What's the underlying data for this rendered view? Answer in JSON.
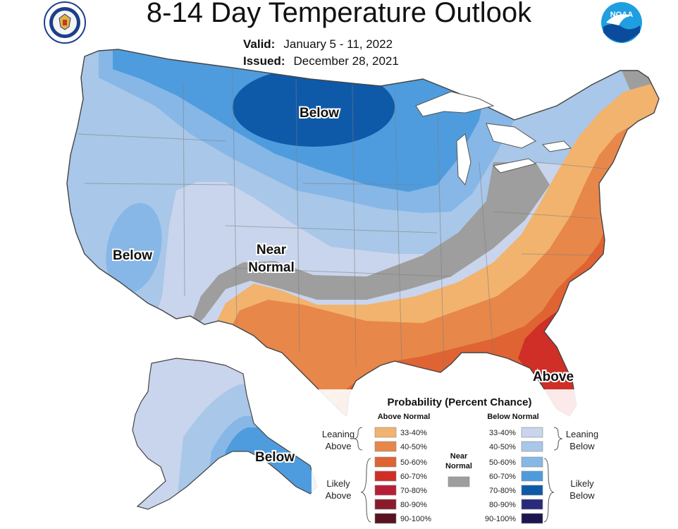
{
  "header": {
    "title": "8-14 Day Temperature Outlook",
    "valid_label": "Valid:",
    "valid_value": "January 5 - 11, 2022",
    "issued_label": "Issued:",
    "issued_value": "December 28, 2021",
    "left_logo_icon": "doc-seal-icon",
    "right_logo_icon": "noaa-logo-icon",
    "right_logo_text": "NOAA"
  },
  "map": {
    "labels": {
      "below_north": "Below",
      "below_west": "Below",
      "near_normal_1": "Near",
      "near_normal_2": "Normal",
      "above": "Above",
      "below_alaska": "Below"
    }
  },
  "colors": {
    "above_33_40": "#f2b36e",
    "above_40_50": "#e8874a",
    "above_50_60": "#df6333",
    "above_60_70": "#cf2f27",
    "above_70_80": "#b81e36",
    "above_80_90": "#8a1b2a",
    "above_90_100": "#5a1220",
    "near_normal": "#9e9e9e",
    "below_33_40": "#c9d5ec",
    "below_40_50": "#a9c7e8",
    "below_50_60": "#86b7e6",
    "below_60_70": "#4e9cdd",
    "below_70_80": "#0e5aa8",
    "below_80_90": "#2a2a7c",
    "below_90_100": "#1b1650"
  },
  "legend": {
    "title": "Probability (Percent Chance)",
    "above_header": "Above Normal",
    "below_header": "Below Normal",
    "near_label_1": "Near",
    "near_label_2": "Normal",
    "leaning_above_1": "Leaning",
    "leaning_above_2": "Above",
    "likely_above_1": "Likely",
    "likely_above_2": "Above",
    "leaning_below_1": "Leaning",
    "leaning_below_2": "Below",
    "likely_below_1": "Likely",
    "likely_below_2": "Below",
    "above_rows": [
      "33-40%",
      "40-50%",
      "50-60%",
      "60-70%",
      "70-80%",
      "80-90%",
      "90-100%"
    ],
    "below_rows": [
      "33-40%",
      "40-50%",
      "50-60%",
      "60-70%",
      "70-80%",
      "80-90%",
      "90-100%"
    ]
  }
}
